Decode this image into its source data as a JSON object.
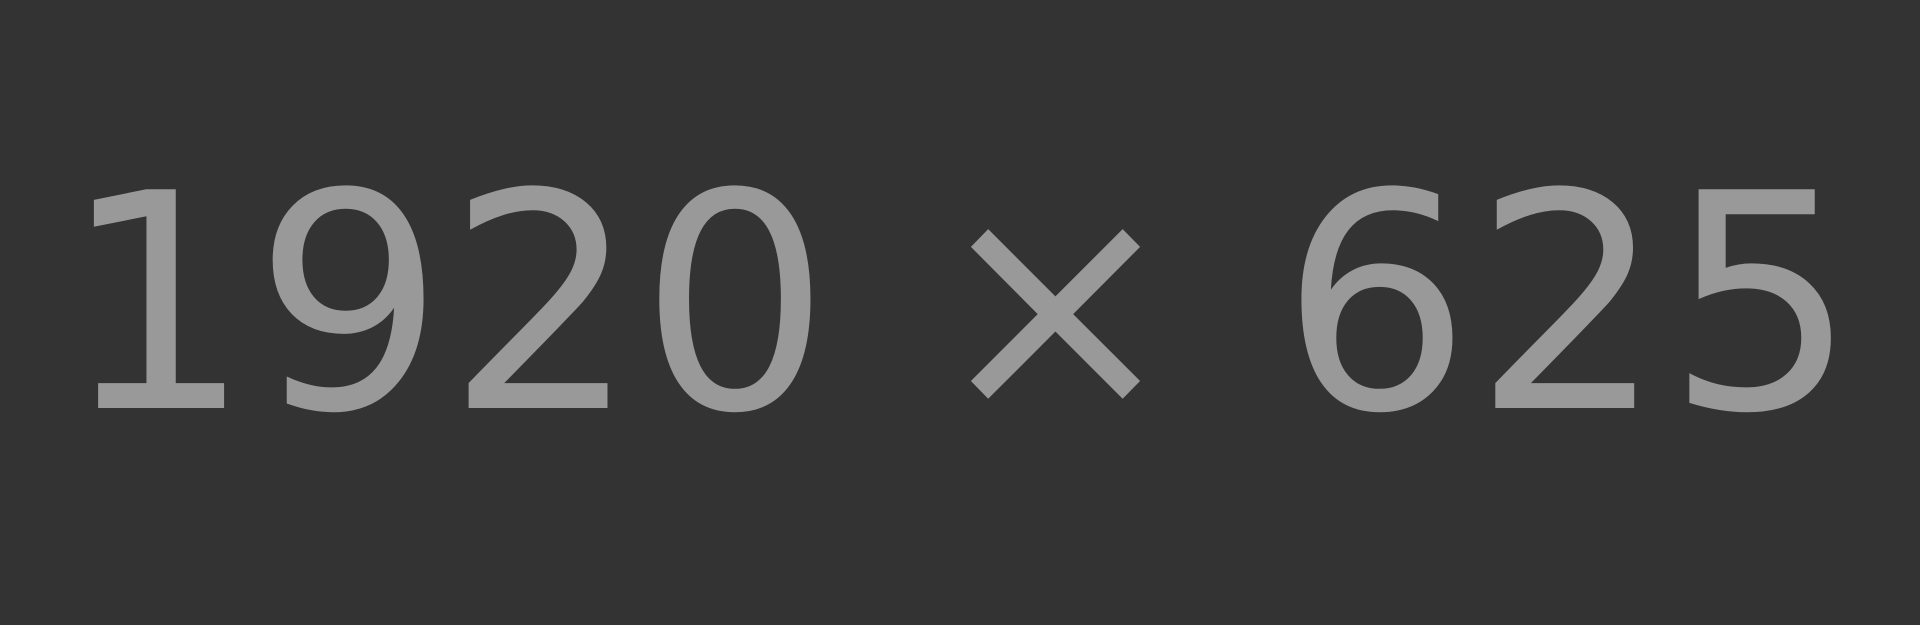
{
  "placeholder": {
    "label": "1920 × 625",
    "background_color": "#333333",
    "text_color": "#999999"
  }
}
